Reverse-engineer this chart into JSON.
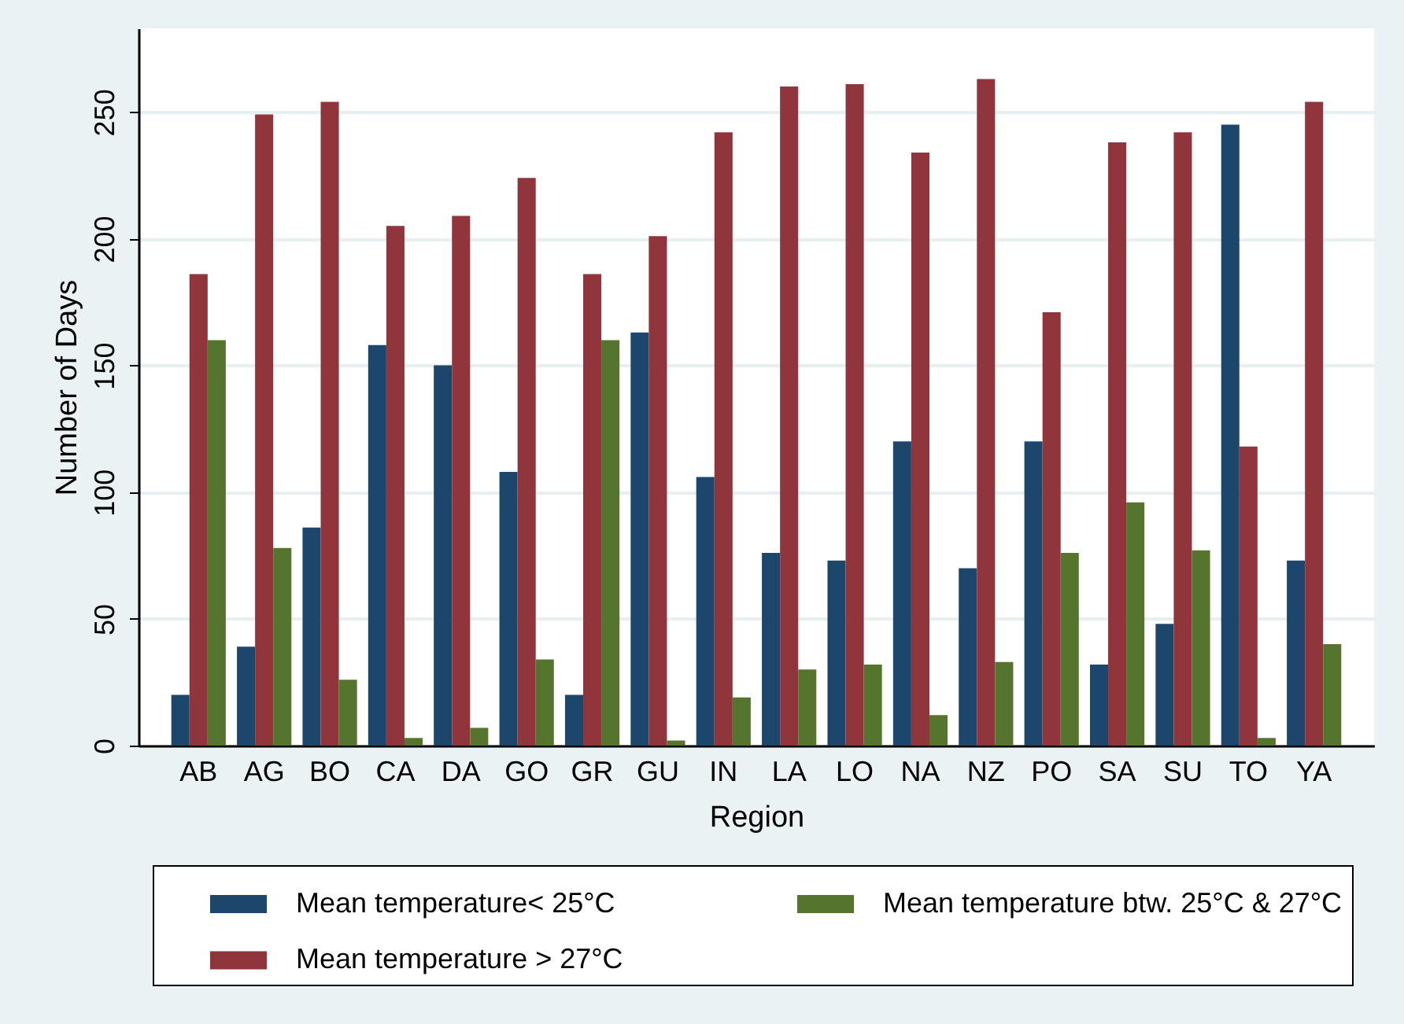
{
  "chart_data": {
    "type": "bar",
    "xlabel": "Region",
    "ylabel": "Number of Days",
    "categories": [
      "AB",
      "AG",
      "BO",
      "CA",
      "DA",
      "GO",
      "GR",
      "GU",
      "IN",
      "LA",
      "LO",
      "NA",
      "NZ",
      "PO",
      "SA",
      "SU",
      "TO",
      "YA"
    ],
    "series": [
      {
        "name": "Mean temperature< 25°C",
        "color": "#1c466c",
        "values": [
          20,
          39,
          86,
          158,
          150,
          108,
          20,
          163,
          106,
          76,
          73,
          120,
          70,
          120,
          32,
          48,
          245,
          73
        ]
      },
      {
        "name": "Mean temperature > 27°C",
        "color": "#90353b",
        "values": [
          186,
          249,
          254,
          205,
          209,
          224,
          186,
          201,
          242,
          260,
          261,
          234,
          263,
          171,
          238,
          242,
          118,
          254
        ]
      },
      {
        "name": "Mean temperature btw. 25°C & 27°C",
        "color": "#55752f",
        "values": [
          160,
          78,
          26,
          3,
          7,
          34,
          160,
          2,
          19,
          30,
          32,
          12,
          33,
          76,
          96,
          77,
          3,
          40
        ]
      }
    ],
    "ylim": [
      0,
      283
    ],
    "yticks": [
      0,
      50,
      100,
      150,
      200,
      250
    ],
    "grid": "y",
    "legend": "bottom"
  }
}
